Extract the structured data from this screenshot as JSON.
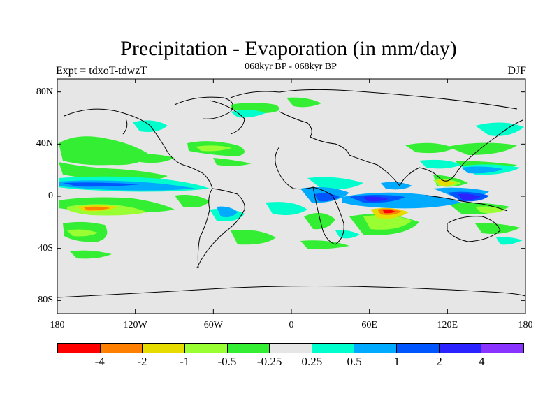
{
  "title": "Precipitation - Evaporation (in mm/day)",
  "subtitle": "068kyr BP - 068kyr BP",
  "left_label": "Expt = tdxoT-tdwzT",
  "right_label": "DJF",
  "map": {
    "projection": "cylindrical-equidistant",
    "lon_range": [
      -180,
      180
    ],
    "lat_range": [
      -90,
      90
    ],
    "lon_ticks": [
      "180",
      "120W",
      "60W",
      "0",
      "60E",
      "120E",
      "180"
    ],
    "lat_ticks": [
      "80N",
      "40N",
      "0",
      "40S",
      "80S"
    ],
    "background_color": "#e6e6e6"
  },
  "colorbar": {
    "colors": [
      "#ff0000",
      "#ff8000",
      "#e6dc00",
      "#99ff33",
      "#33ee33",
      "#e6e6e6",
      "#00ffcc",
      "#00aaff",
      "#0055ff",
      "#2a22ff",
      "#8833ff"
    ],
    "labels": [
      "-4",
      "-2",
      "-1",
      "-0.5",
      "-0.25",
      "0.25",
      "0.5",
      "1",
      "2",
      "4"
    ]
  }
}
